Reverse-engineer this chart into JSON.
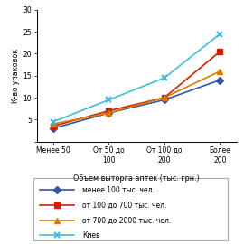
{
  "x_labels": [
    "Менее 50",
    "От 50 до\n100",
    "От 100 до\n200",
    "Более\n200"
  ],
  "x_positions": [
    0,
    1,
    2,
    3
  ],
  "series": [
    {
      "label": "менее 100 тыс. чел.",
      "values": [
        3.0,
        6.5,
        9.5,
        14.0
      ],
      "color": "#3355aa",
      "marker": "D",
      "markersize": 4,
      "linewidth": 1.2
    },
    {
      "label": "от 100 до 700 тыс. чел.",
      "values": [
        3.5,
        7.0,
        10.0,
        20.5
      ],
      "color": "#cc2200",
      "marker": "s",
      "markersize": 4,
      "linewidth": 1.2
    },
    {
      "label": "от 700 до 2000 тыс. чел.",
      "values": [
        4.0,
        6.5,
        10.0,
        16.0
      ],
      "color": "#dd7700",
      "marker": "^",
      "markersize": 4,
      "linewidth": 1.2
    },
    {
      "label": "Киев",
      "values": [
        4.5,
        9.5,
        14.5,
        24.5
      ],
      "color": "#44bbdd",
      "marker": "x",
      "markersize": 5,
      "linewidth": 1.2,
      "markeredgewidth": 1.5
    }
  ],
  "ylabel": "К-во упаковок",
  "xlabel": "Объем выторга аптек (тыс. грн.)",
  "ylim": [
    0,
    30
  ],
  "yticks": [
    0,
    5,
    10,
    15,
    20,
    25,
    30
  ],
  "tick_fontsize": 5.5,
  "axis_label_fontsize": 5.8,
  "legend_fontsize": 5.5,
  "background_color": "#ffffff"
}
